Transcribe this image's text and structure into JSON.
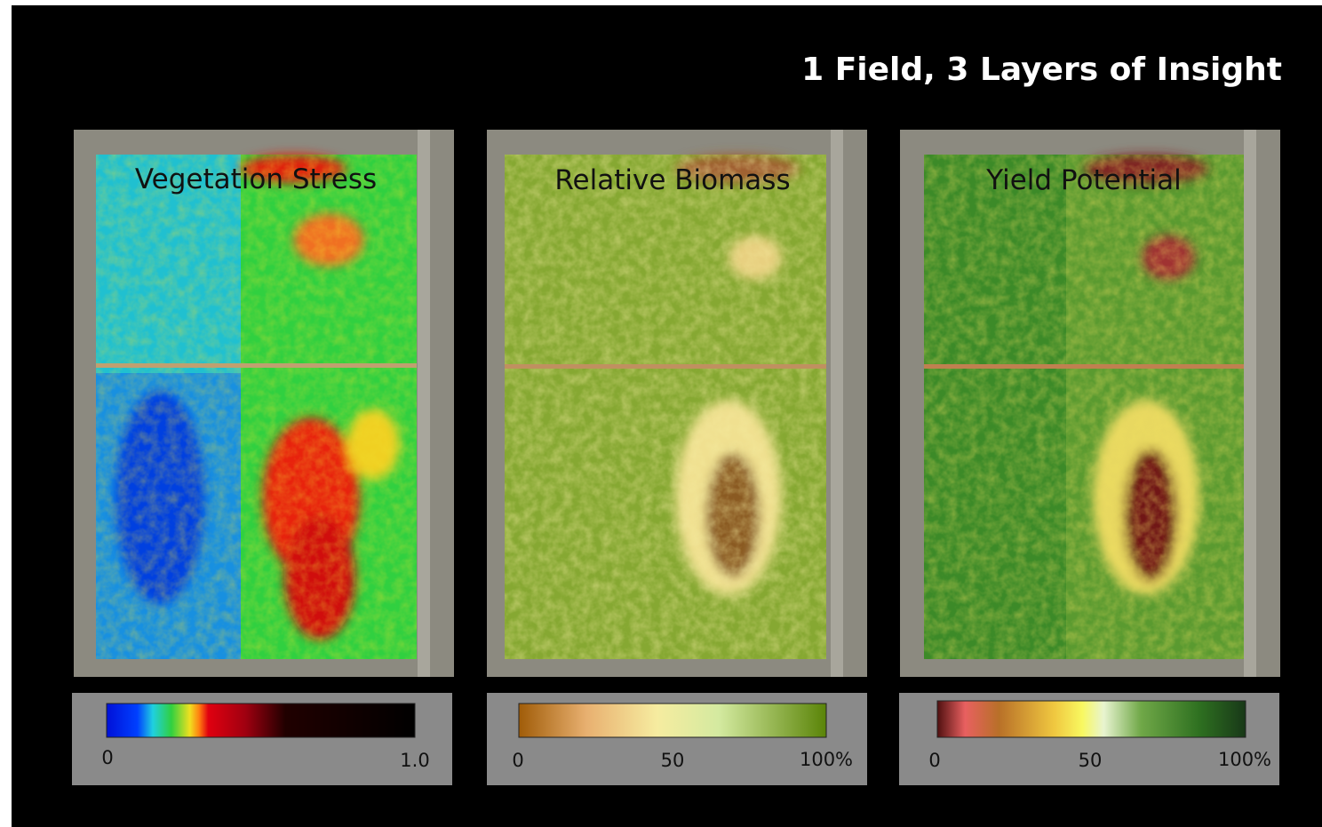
{
  "title": "1 Field, 3 Layers of Insight",
  "panels": [
    {
      "label": "Vegetation Stress",
      "legend_ticks": [
        "0",
        "1.0"
      ]
    },
    {
      "label": "Relative Biomass",
      "legend_ticks": [
        "0",
        "50",
        "100%"
      ]
    },
    {
      "label": "Yield Potential",
      "legend_ticks": [
        "0",
        "50",
        "100%"
      ]
    }
  ]
}
